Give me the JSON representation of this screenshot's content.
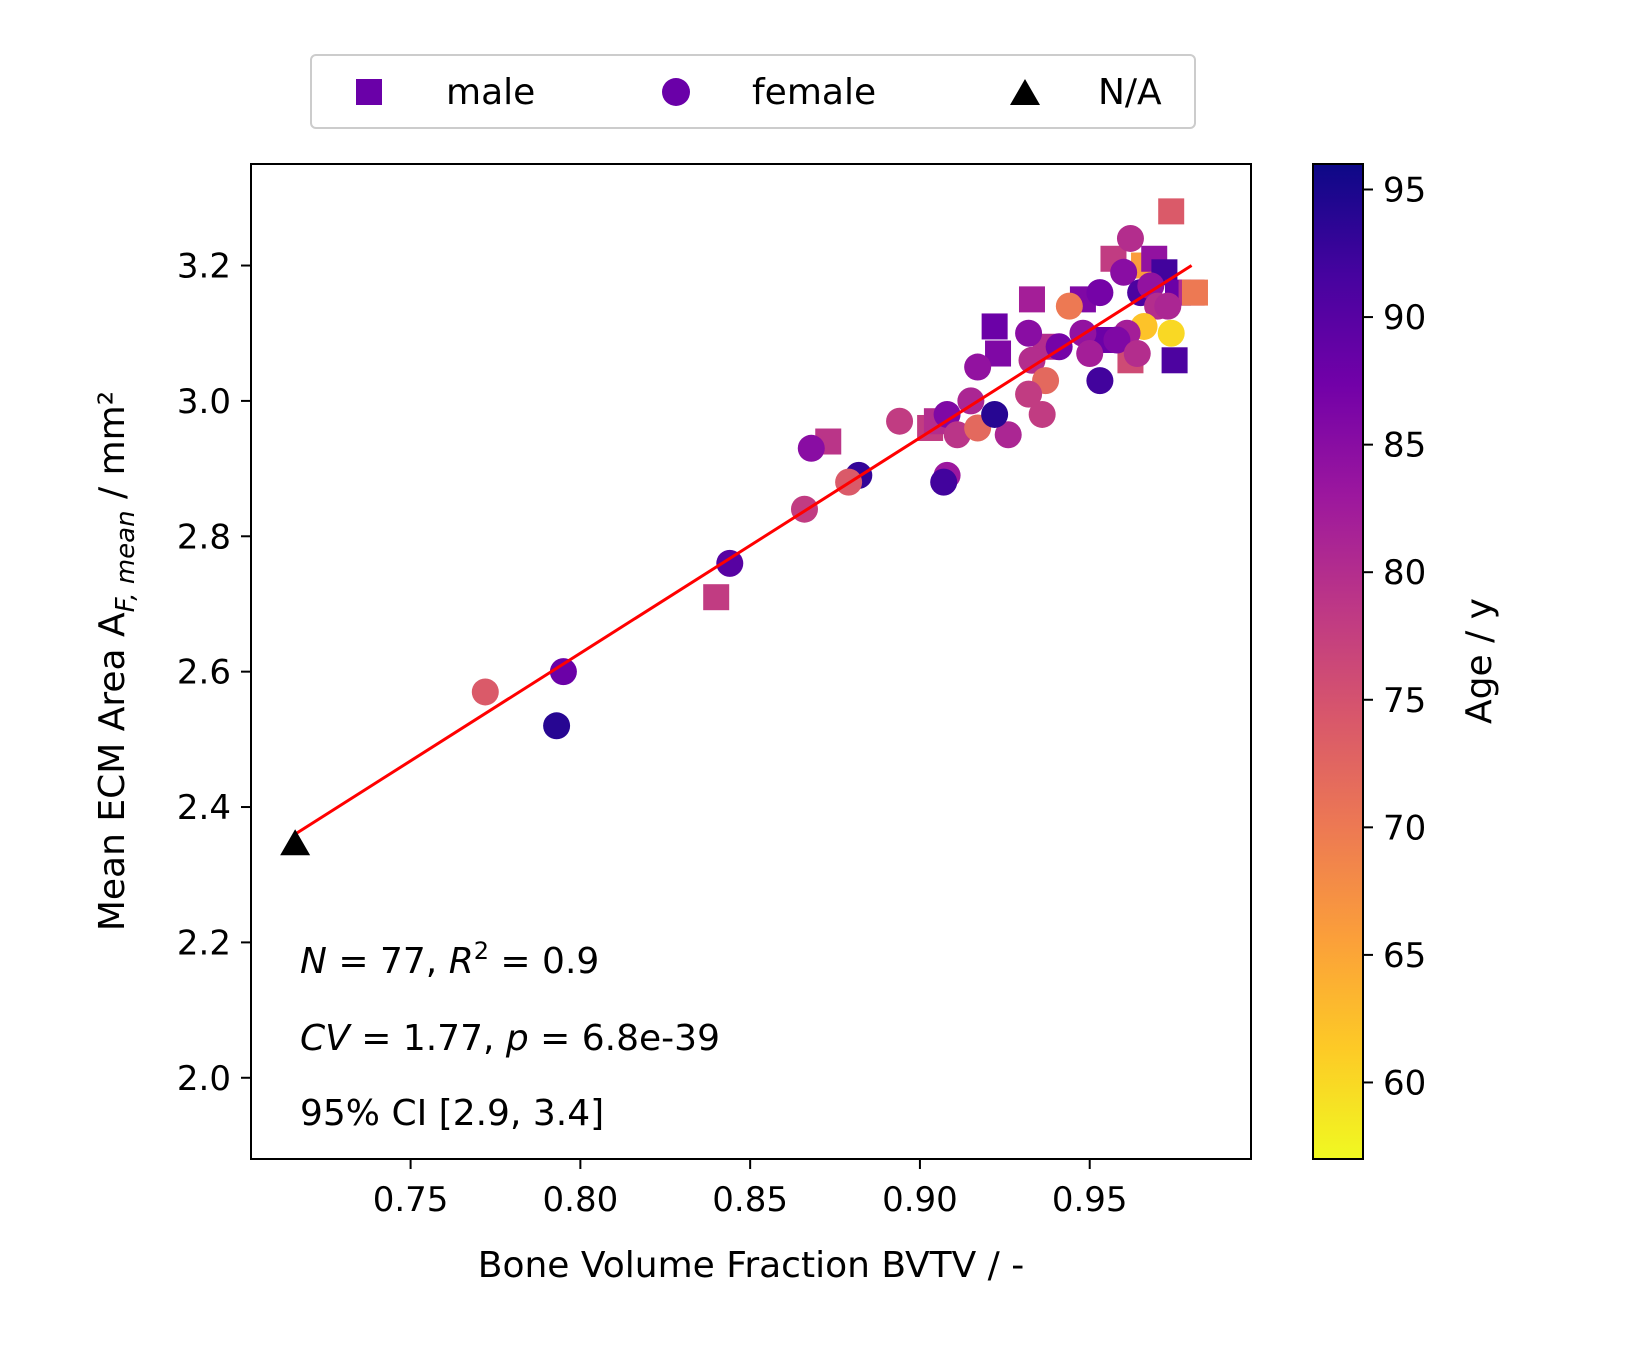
{
  "chart_data": {
    "type": "scatter",
    "xlabel": "Bone Volume Fraction BVTV / -",
    "ylabel": {
      "prefix": "Mean ECM Area A",
      "subscript": "F, mean",
      "suffix": " / mm²"
    },
    "xlim": [
      0.703,
      0.9975
    ],
    "ylim": [
      1.88,
      3.35
    ],
    "x_ticks": [
      0.75,
      0.8,
      0.85,
      0.9,
      0.95
    ],
    "x_tick_labels": [
      "0.75",
      "0.80",
      "0.85",
      "0.90",
      "0.95"
    ],
    "y_ticks": [
      2.0,
      2.2,
      2.4,
      2.6,
      2.8,
      3.0,
      3.2
    ],
    "y_tick_labels": [
      "2.0",
      "2.2",
      "2.4",
      "2.6",
      "2.8",
      "3.0",
      "3.2"
    ],
    "grid": false,
    "legend": {
      "placement": "top-center",
      "entries": [
        {
          "label": "male",
          "marker": "square",
          "color": "#6a00a8"
        },
        {
          "label": "female",
          "marker": "circle",
          "color": "#6a00a8"
        },
        {
          "label": "N/A",
          "marker": "triangle",
          "color": "#000000"
        }
      ]
    },
    "colorbar": {
      "label": "Age / y",
      "range": [
        57,
        96
      ],
      "ticks": [
        60,
        65,
        70,
        75,
        80,
        85,
        90,
        95
      ],
      "tick_labels": [
        "60",
        "65",
        "70",
        "75",
        "80",
        "85",
        "90",
        "95"
      ],
      "colormap": "plasma",
      "stops": [
        "#0d0887",
        "#46039f",
        "#7201a8",
        "#9c179e",
        "#bd3786",
        "#d8576b",
        "#ed7953",
        "#fb9f3a",
        "#fdca26",
        "#f0f921"
      ]
    },
    "fit_line": {
      "x": [
        0.716,
        0.98
      ],
      "y": [
        2.36,
        3.2
      ],
      "color": "#ff0000"
    },
    "annotations": [
      {
        "parts": [
          {
            "t": "N",
            "i": true
          },
          {
            "t": " = 77, ",
            "i": false
          },
          {
            "t": "R",
            "i": true
          },
          {
            "t": "2",
            "i": false,
            "sup": true
          },
          {
            "t": " = 0.9",
            "i": false
          }
        ]
      },
      {
        "parts": [
          {
            "t": "CV",
            "i": true
          },
          {
            "t": " = 1.77, ",
            "i": false
          },
          {
            "t": "p",
            "i": true
          },
          {
            "t": " = 6.8e-39",
            "i": false
          }
        ]
      },
      {
        "parts": [
          {
            "t": "95% CI [2.9,  3.4]",
            "i": false
          }
        ]
      }
    ],
    "series": [
      {
        "name": "male",
        "marker": "square",
        "points": [
          [
            0.974,
            3.28,
            74
          ],
          [
            0.922,
            3.11,
            88
          ],
          [
            0.923,
            3.07,
            86
          ],
          [
            0.933,
            3.15,
            82
          ],
          [
            0.957,
            3.21,
            78
          ],
          [
            0.966,
            3.2,
            66
          ],
          [
            0.969,
            3.21,
            84
          ],
          [
            0.972,
            3.19,
            92
          ],
          [
            0.976,
            3.16,
            88
          ],
          [
            0.98,
            3.16,
            80
          ],
          [
            0.981,
            3.16,
            70
          ],
          [
            0.975,
            3.06,
            91
          ],
          [
            0.962,
            3.06,
            76
          ],
          [
            0.948,
            3.15,
            86
          ],
          [
            0.937,
            3.08,
            80
          ],
          [
            0.903,
            2.96,
            78
          ],
          [
            0.905,
            2.97,
            80
          ],
          [
            0.873,
            2.94,
            79
          ],
          [
            0.84,
            2.71,
            78
          ],
          [
            0.955,
            3.09,
            88
          ]
        ]
      },
      {
        "name": "female",
        "marker": "circle",
        "points": [
          [
            0.962,
            3.24,
            80
          ],
          [
            0.96,
            3.19,
            85
          ],
          [
            0.953,
            3.16,
            87
          ],
          [
            0.965,
            3.16,
            91
          ],
          [
            0.968,
            3.17,
            84
          ],
          [
            0.97,
            3.14,
            80
          ],
          [
            0.973,
            3.14,
            81
          ],
          [
            0.974,
            3.1,
            60
          ],
          [
            0.966,
            3.11,
            62
          ],
          [
            0.944,
            3.14,
            70
          ],
          [
            0.961,
            3.1,
            82
          ],
          [
            0.958,
            3.09,
            86
          ],
          [
            0.948,
            3.1,
            84
          ],
          [
            0.941,
            3.08,
            87
          ],
          [
            0.932,
            3.1,
            85
          ],
          [
            0.933,
            3.06,
            80
          ],
          [
            0.95,
            3.07,
            82
          ],
          [
            0.964,
            3.07,
            80
          ],
          [
            0.953,
            3.03,
            92
          ],
          [
            0.937,
            3.03,
            72
          ],
          [
            0.932,
            3.01,
            78
          ],
          [
            0.917,
            3.05,
            84
          ],
          [
            0.908,
            2.98,
            86
          ],
          [
            0.915,
            3.0,
            81
          ],
          [
            0.911,
            2.95,
            79
          ],
          [
            0.917,
            2.96,
            72
          ],
          [
            0.926,
            2.95,
            81
          ],
          [
            0.936,
            2.98,
            78
          ],
          [
            0.922,
            2.98,
            94
          ],
          [
            0.894,
            2.97,
            78
          ],
          [
            0.908,
            2.89,
            83
          ],
          [
            0.907,
            2.88,
            92
          ],
          [
            0.868,
            2.93,
            85
          ],
          [
            0.882,
            2.89,
            93
          ],
          [
            0.879,
            2.88,
            74
          ],
          [
            0.866,
            2.84,
            78
          ],
          [
            0.844,
            2.76,
            90
          ],
          [
            0.795,
            2.6,
            88
          ],
          [
            0.793,
            2.52,
            94
          ],
          [
            0.772,
            2.57,
            74
          ]
        ]
      },
      {
        "name": "N/A",
        "marker": "triangle",
        "points": [
          [
            0.716,
            2.345
          ]
        ]
      }
    ]
  }
}
